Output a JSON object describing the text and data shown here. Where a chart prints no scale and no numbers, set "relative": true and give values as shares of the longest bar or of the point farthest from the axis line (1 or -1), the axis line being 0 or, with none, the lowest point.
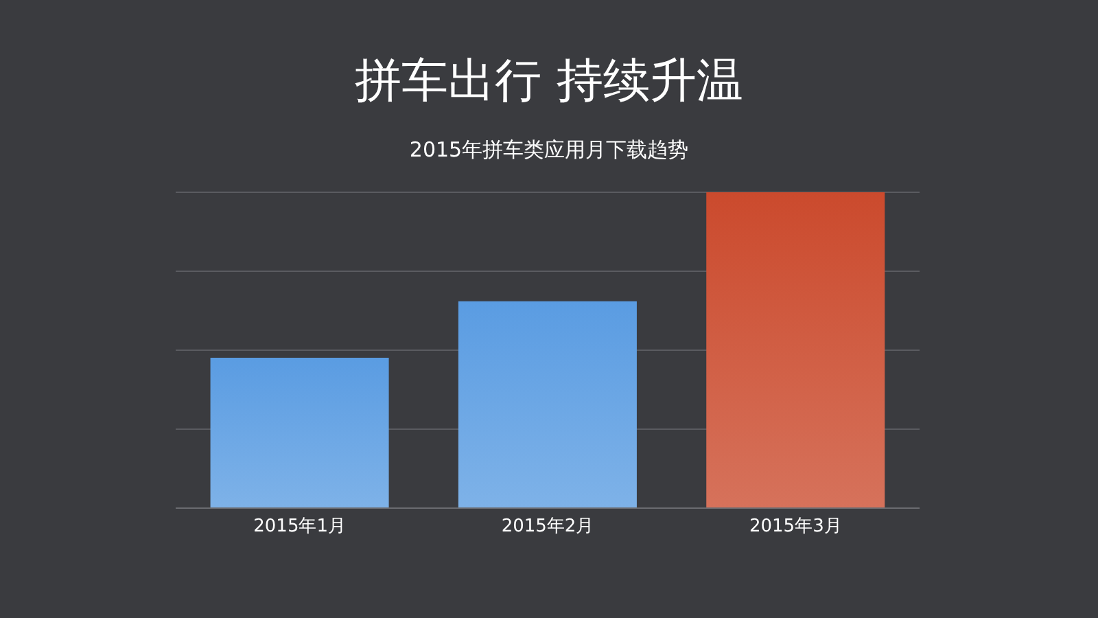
{
  "chart_data": {
    "type": "bar",
    "title": "拼车出行 持续升温",
    "subtitle": "2015年拼车类应用月下载趋势",
    "categories": [
      "2015年1月",
      "2015年2月",
      "2015年3月"
    ],
    "values": [
      0.476,
      0.655,
      1
    ],
    "colors": [
      "#5a9ce2",
      "#5a9ce2",
      "#cb4a2d"
    ],
    "relative": true,
    "grid": "y"
  }
}
